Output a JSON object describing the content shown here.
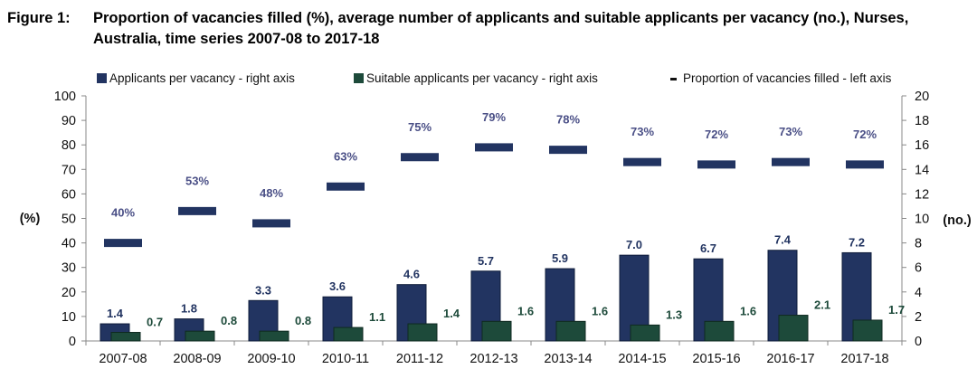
{
  "figure": {
    "label": "Figure 1:",
    "title": "Proportion of vacancies filled (%), average number of applicants and suitable applicants per vacancy (no.), Nurses, Australia, time series 2007-08 to 2017-18"
  },
  "chart_data": {
    "type": "bar",
    "categories": [
      "2007-08",
      "2008-09",
      "2009-10",
      "2010-11",
      "2011-12",
      "2012-13",
      "2013-14",
      "2014-15",
      "2015-16",
      "2016-17",
      "2017-18"
    ],
    "series": [
      {
        "name": "Applicants per vacancy - right axis",
        "axis": "right",
        "kind": "bar",
        "color": "#223461",
        "values": [
          1.4,
          1.8,
          3.3,
          3.6,
          4.6,
          5.7,
          5.9,
          7.0,
          6.7,
          7.4,
          7.2
        ],
        "labels": [
          "1.4",
          "1.8",
          "3.3",
          "3.6",
          "4.6",
          "5.7",
          "5.9",
          "7.0",
          "6.7",
          "7.4",
          "7.2"
        ]
      },
      {
        "name": "Suitable applicants per vacancy - right axis",
        "axis": "right",
        "kind": "bar",
        "color": "#1d4a3a",
        "values": [
          0.7,
          0.8,
          0.8,
          1.1,
          1.4,
          1.6,
          1.6,
          1.3,
          1.6,
          2.1,
          1.7
        ],
        "labels": [
          "0.7",
          "0.8",
          "0.8",
          "1.1",
          "1.4",
          "1.6",
          "1.6",
          "1.3",
          "1.6",
          "2.1",
          "1.7"
        ]
      },
      {
        "name": "Proportion of vacancies filled - left axis",
        "axis": "left",
        "kind": "marker",
        "color": "#223461",
        "values": [
          40,
          53,
          48,
          63,
          75,
          79,
          78,
          73,
          72,
          73,
          72
        ],
        "labels": [
          "40%",
          "53%",
          "48%",
          "63%",
          "75%",
          "79%",
          "78%",
          "73%",
          "72%",
          "73%",
          "72%"
        ]
      }
    ],
    "left_axis": {
      "label": "(%)",
      "range": [
        0,
        100
      ],
      "ticks": [
        "0",
        "10",
        "20",
        "30",
        "40",
        "50",
        "60",
        "70",
        "80",
        "90",
        "100"
      ]
    },
    "right_axis": {
      "label": "(no.)",
      "range": [
        0,
        20
      ],
      "ticks": [
        "0",
        "2",
        "4",
        "6",
        "8",
        "10",
        "12",
        "14",
        "16",
        "18",
        "20"
      ]
    },
    "legend_position": "top",
    "grid": false,
    "label_colors": {
      "bar_label": "#223461",
      "suitable_label": "#1d4a3a",
      "percent_label": "#4a4f86"
    }
  }
}
